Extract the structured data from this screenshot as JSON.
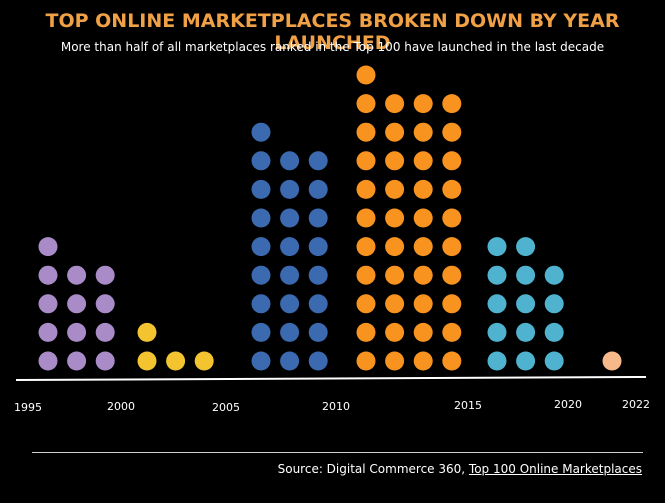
{
  "chart_data": {
    "type": "dot-histogram",
    "title": "TOP ONLINE MARKETPLACES BROKEN DOWN BY YEAR LAUNCHED",
    "subtitle": "More than half of all marketplaces ranked in the Top 100 have launched in the last decade",
    "tick_labels": [
      "1995",
      "2000",
      "2005",
      "2010",
      "2015",
      "2020",
      "2022"
    ],
    "series": [
      {
        "range": "1995-1999",
        "count": 13,
        "color": "#a98bc7"
      },
      {
        "range": "2000-2004",
        "count": 4,
        "color": "#f4c430"
      },
      {
        "range": "2005-2009",
        "count": 25,
        "color": "#3b6ab0"
      },
      {
        "range": "2010-2014",
        "count": 41,
        "color": "#f7931e"
      },
      {
        "range": "2015-2019",
        "count": 14,
        "color": "#4fb3cf"
      },
      {
        "range": "2020-2022",
        "count": 1,
        "color": "#f7b98a"
      }
    ]
  },
  "footer": {
    "source_prefix": "Source: Digital Commerce 360, ",
    "source_link": "Top 100 Online Marketplaces"
  }
}
